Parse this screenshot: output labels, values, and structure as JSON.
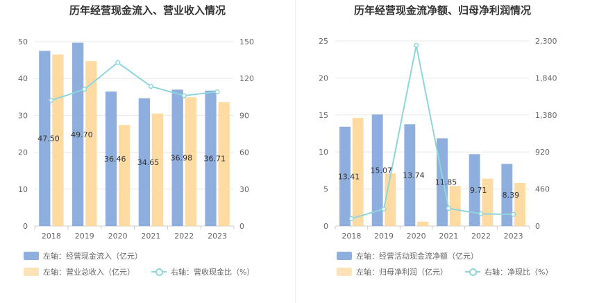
{
  "colors": {
    "bar_primary": "#8eaede",
    "bar_secondary": "#fed99d",
    "line": "#8fd6dc",
    "grid": "#e8e8e8",
    "axis": "#cccccc"
  },
  "legend_icons": [
    "bar-swatch-blue",
    "bar-swatch-orange",
    "line-marker-icon"
  ],
  "chart_data": [
    {
      "type": "bar",
      "title": "历年经营现金流入、营业收入情况",
      "categories": [
        "2018",
        "2019",
        "2020",
        "2021",
        "2022",
        "2023"
      ],
      "left_axis": {
        "min": 0,
        "max": 50,
        "ticks": [
          "0",
          "10",
          "20",
          "30",
          "40",
          "50"
        ]
      },
      "right_axis": {
        "min": 0,
        "max": 150,
        "ticks": [
          "0",
          "30",
          "60",
          "90",
          "120",
          "150"
        ]
      },
      "grid": true,
      "legend_position": "bottom-left",
      "series": [
        {
          "name": "左轴：经营现金流入（亿元）",
          "axis": "left",
          "kind": "bar",
          "values": [
            47.5,
            49.7,
            36.46,
            34.65,
            36.98,
            36.71
          ],
          "labels": [
            "47.50",
            "49.70",
            "36.46",
            "34.65",
            "36.98",
            "36.71"
          ]
        },
        {
          "name": "左轴：营业总收入（亿元）",
          "axis": "left",
          "kind": "bar",
          "values": [
            46.5,
            44.7,
            27.4,
            30.5,
            34.9,
            33.6
          ]
        },
        {
          "name": "右轴：营收现金比（%）",
          "axis": "right",
          "kind": "line",
          "values": [
            102.2,
            111.2,
            133.0,
            113.6,
            106.0,
            109.2
          ]
        }
      ]
    },
    {
      "type": "bar",
      "title": "历年经营现金流净额、归母净利润情况",
      "categories": [
        "2018",
        "2019",
        "2020",
        "2021",
        "2022",
        "2023"
      ],
      "left_axis": {
        "min": 0,
        "max": 25,
        "ticks": [
          "0",
          "5",
          "10",
          "15",
          "20",
          "25"
        ]
      },
      "right_axis": {
        "min": 0,
        "max": 2300,
        "ticks": [
          "0",
          "460",
          "920",
          "1,380",
          "1,840",
          "2,300"
        ]
      },
      "grid": true,
      "legend_position": "bottom-left",
      "series": [
        {
          "name": "左轴：经营活动现金流净额（亿元）",
          "axis": "left",
          "kind": "bar",
          "values": [
            13.41,
            15.07,
            13.74,
            11.85,
            9.71,
            8.39
          ],
          "labels": [
            "13.41",
            "15.07",
            "13.74",
            "11.85",
            "9.71",
            "8.39"
          ]
        },
        {
          "name": "左轴：归母净利润（亿元）",
          "axis": "left",
          "kind": "bar",
          "values": [
            14.6,
            7.1,
            0.6,
            5.4,
            6.4,
            5.8
          ]
        },
        {
          "name": "右轴：净现比（%）",
          "axis": "right",
          "kind": "line",
          "values": [
            92,
            212,
            2245,
            219,
            152,
            145
          ]
        }
      ]
    }
  ]
}
